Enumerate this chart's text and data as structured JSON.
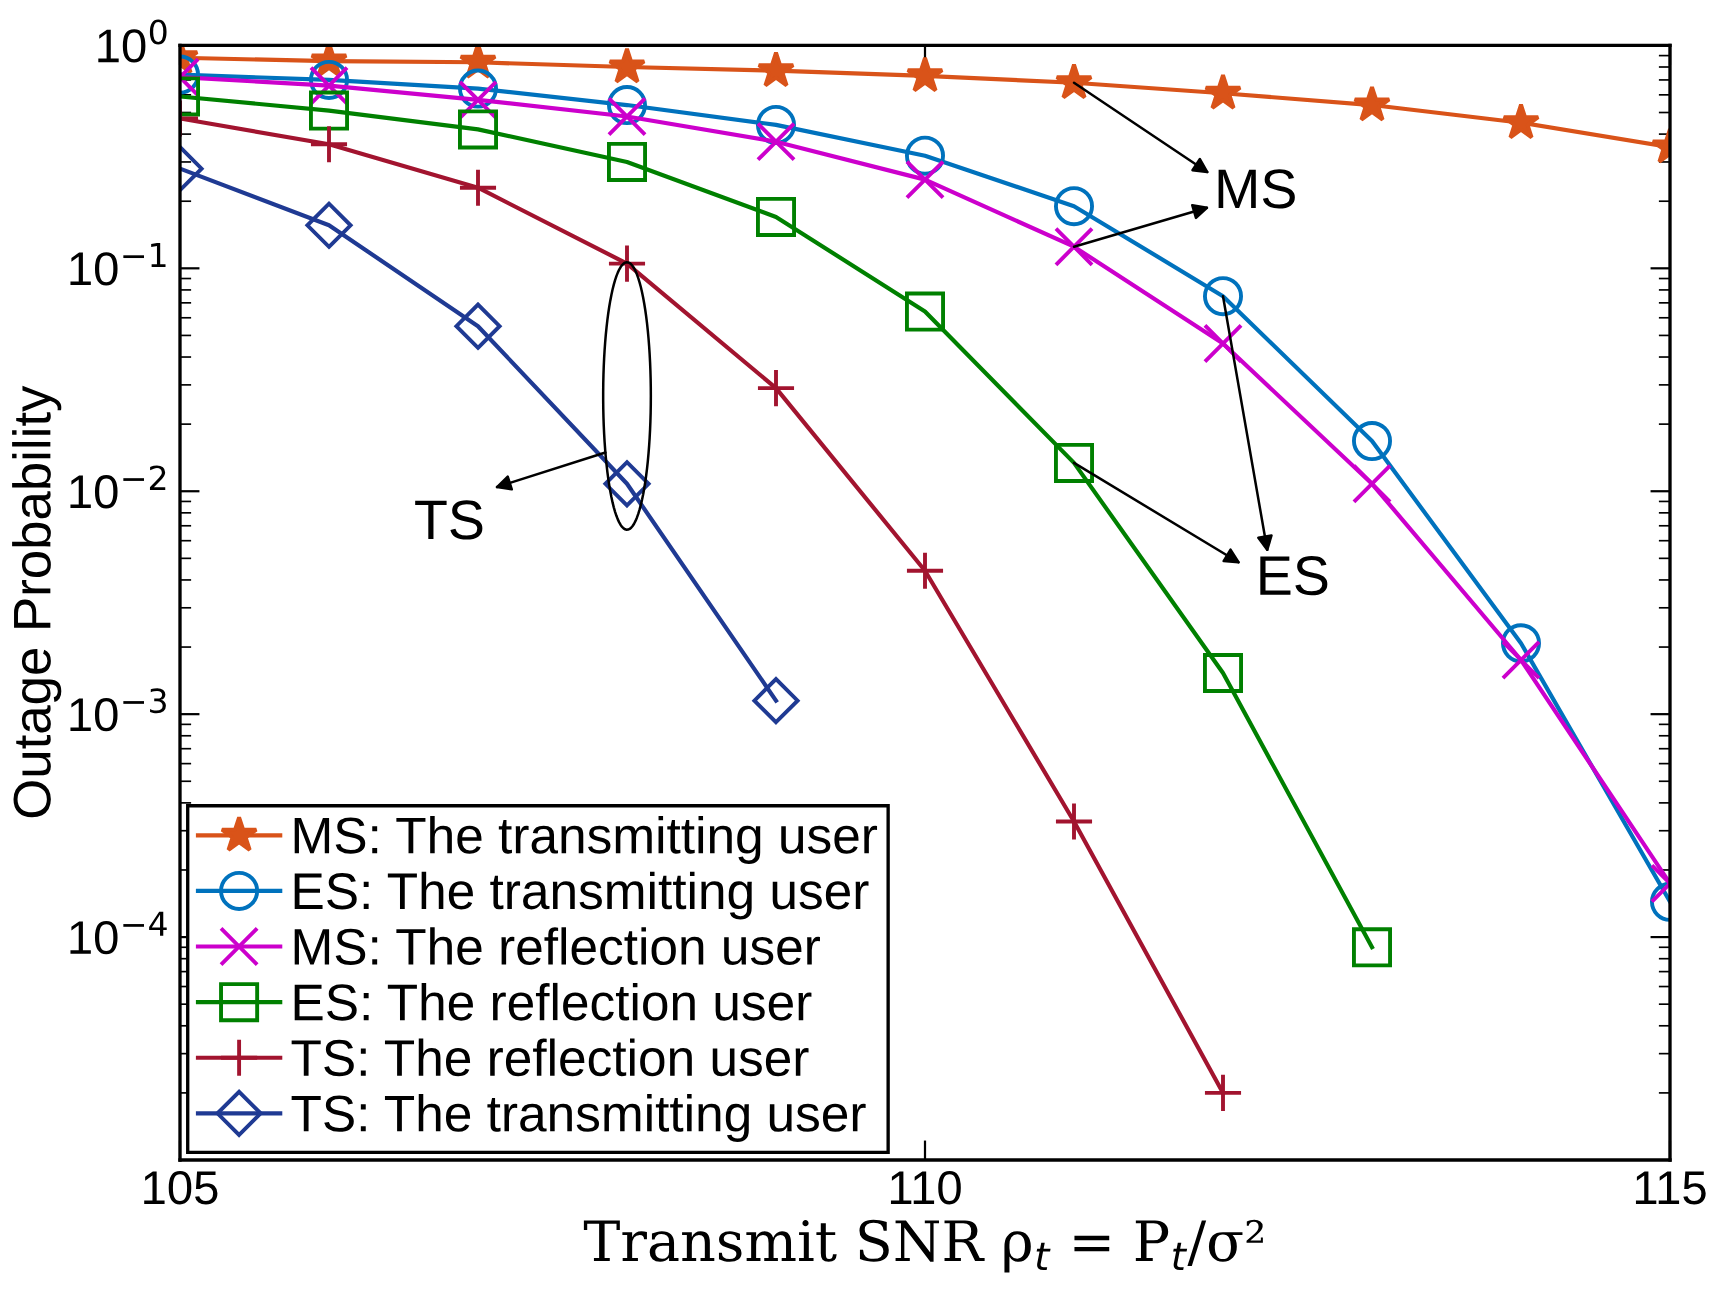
{
  "chart_data": {
    "type": "line",
    "xlabel": "Transmit SNR ρ$_{t}$ = P$_{t}$/σ²",
    "ylabel": "Outage Probability",
    "x": [
      105,
      106,
      107,
      108,
      109,
      110,
      111,
      112,
      113,
      114,
      115
    ],
    "series": [
      {
        "name": "MS: The transmitting user",
        "color": "#d95319",
        "marker": "star",
        "values": [
          0.88,
          0.85,
          0.84,
          0.8,
          0.77,
          0.73,
          0.68,
          0.61,
          0.54,
          0.45,
          0.35
        ]
      },
      {
        "name": "ES: The transmitting user",
        "color": "#0072bd",
        "marker": "circle",
        "values": [
          0.74,
          0.7,
          0.64,
          0.54,
          0.44,
          0.32,
          0.19,
          0.075,
          0.0168,
          0.00208,
          0.000144
        ]
      },
      {
        "name": "MS: The reflection user",
        "color": "#cc00cc",
        "marker": "cross",
        "values": [
          0.72,
          0.66,
          0.57,
          0.48,
          0.37,
          0.25,
          0.125,
          0.046,
          0.0108,
          0.00175,
          0.000174
        ]
      },
      {
        "name": "ES: The reflection user",
        "color": "#008000",
        "marker": "square",
        "values": [
          0.59,
          0.51,
          0.42,
          0.3,
          0.17,
          0.064,
          0.0134,
          0.00153,
          9e-05,
          null,
          null
        ]
      },
      {
        "name": "TS: The reflection user",
        "color": "#a2142f",
        "marker": "plus",
        "values": [
          0.47,
          0.36,
          0.23,
          0.105,
          0.029,
          0.0044,
          0.00033,
          2e-05,
          null,
          null,
          null
        ]
      },
      {
        "name": "TS: The transmitting user",
        "color": "#1f3a93",
        "marker": "diamond",
        "values": [
          0.28,
          0.156,
          0.055,
          0.0108,
          0.00115,
          null,
          null,
          null,
          null,
          null,
          null
        ]
      }
    ],
    "log": "y",
    "xlim": [
      105,
      115
    ],
    "xticks": [
      105,
      110,
      115
    ],
    "ylim": [
      1e-05,
      1
    ],
    "yticks": [
      {
        "value": 1,
        "label": "10$^{0}$"
      },
      {
        "value": 0.1,
        "label": "10$^{−1}$"
      },
      {
        "value": 0.01,
        "label": "10$^{−2}$"
      },
      {
        "value": 0.001,
        "label": "10$^{−3}$"
      },
      {
        "value": 0.0001,
        "label": "10$^{−4}$"
      }
    ],
    "grid": false,
    "legend": "bottom left",
    "line_style": "solid",
    "annotations": [
      "MS",
      "ES",
      "TS"
    ]
  }
}
